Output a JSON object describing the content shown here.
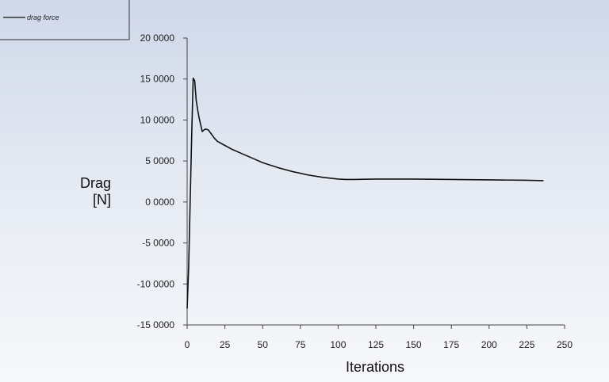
{
  "chart_data": {
    "type": "line",
    "title": "",
    "xlabel": "Iterations",
    "ylabel_line1": "Drag",
    "ylabel_line2": "[N]",
    "xlim": [
      0,
      250
    ],
    "ylim": [
      -15,
      20
    ],
    "x_ticks": [
      0,
      25,
      50,
      75,
      100,
      125,
      150,
      175,
      200,
      225,
      250
    ],
    "x_tick_labels": [
      "0",
      "25",
      "50",
      "75",
      "100",
      "125",
      "150",
      "175",
      "200",
      "225",
      "250"
    ],
    "y_ticks": [
      20,
      15,
      10,
      5,
      0,
      -5,
      -10,
      -15
    ],
    "y_tick_labels": [
      "20 0000",
      "15 0000",
      "10 0000",
      "5 0000",
      "0 0000",
      "-5 0000",
      "-10 0000",
      "-15 0000"
    ],
    "grid": false,
    "legend_position": "top-left",
    "series": [
      {
        "name": "drag force",
        "color": "#111111",
        "x": [
          0,
          1,
          2,
          3,
          4,
          5,
          6,
          7,
          8,
          9,
          10,
          12,
          14,
          16,
          18,
          20,
          25,
          30,
          35,
          40,
          45,
          50,
          60,
          70,
          80,
          90,
          100,
          105,
          110,
          125,
          150,
          175,
          200,
          225,
          236
        ],
        "y": [
          -13.0,
          -8.0,
          0.0,
          8.0,
          15.1,
          14.8,
          12.4,
          11.2,
          10.2,
          9.4,
          8.6,
          8.9,
          8.8,
          8.3,
          7.8,
          7.4,
          6.9,
          6.4,
          6.0,
          5.6,
          5.2,
          4.8,
          4.2,
          3.7,
          3.3,
          3.0,
          2.8,
          2.75,
          2.75,
          2.8,
          2.8,
          2.75,
          2.7,
          2.65,
          2.6
        ]
      }
    ]
  }
}
